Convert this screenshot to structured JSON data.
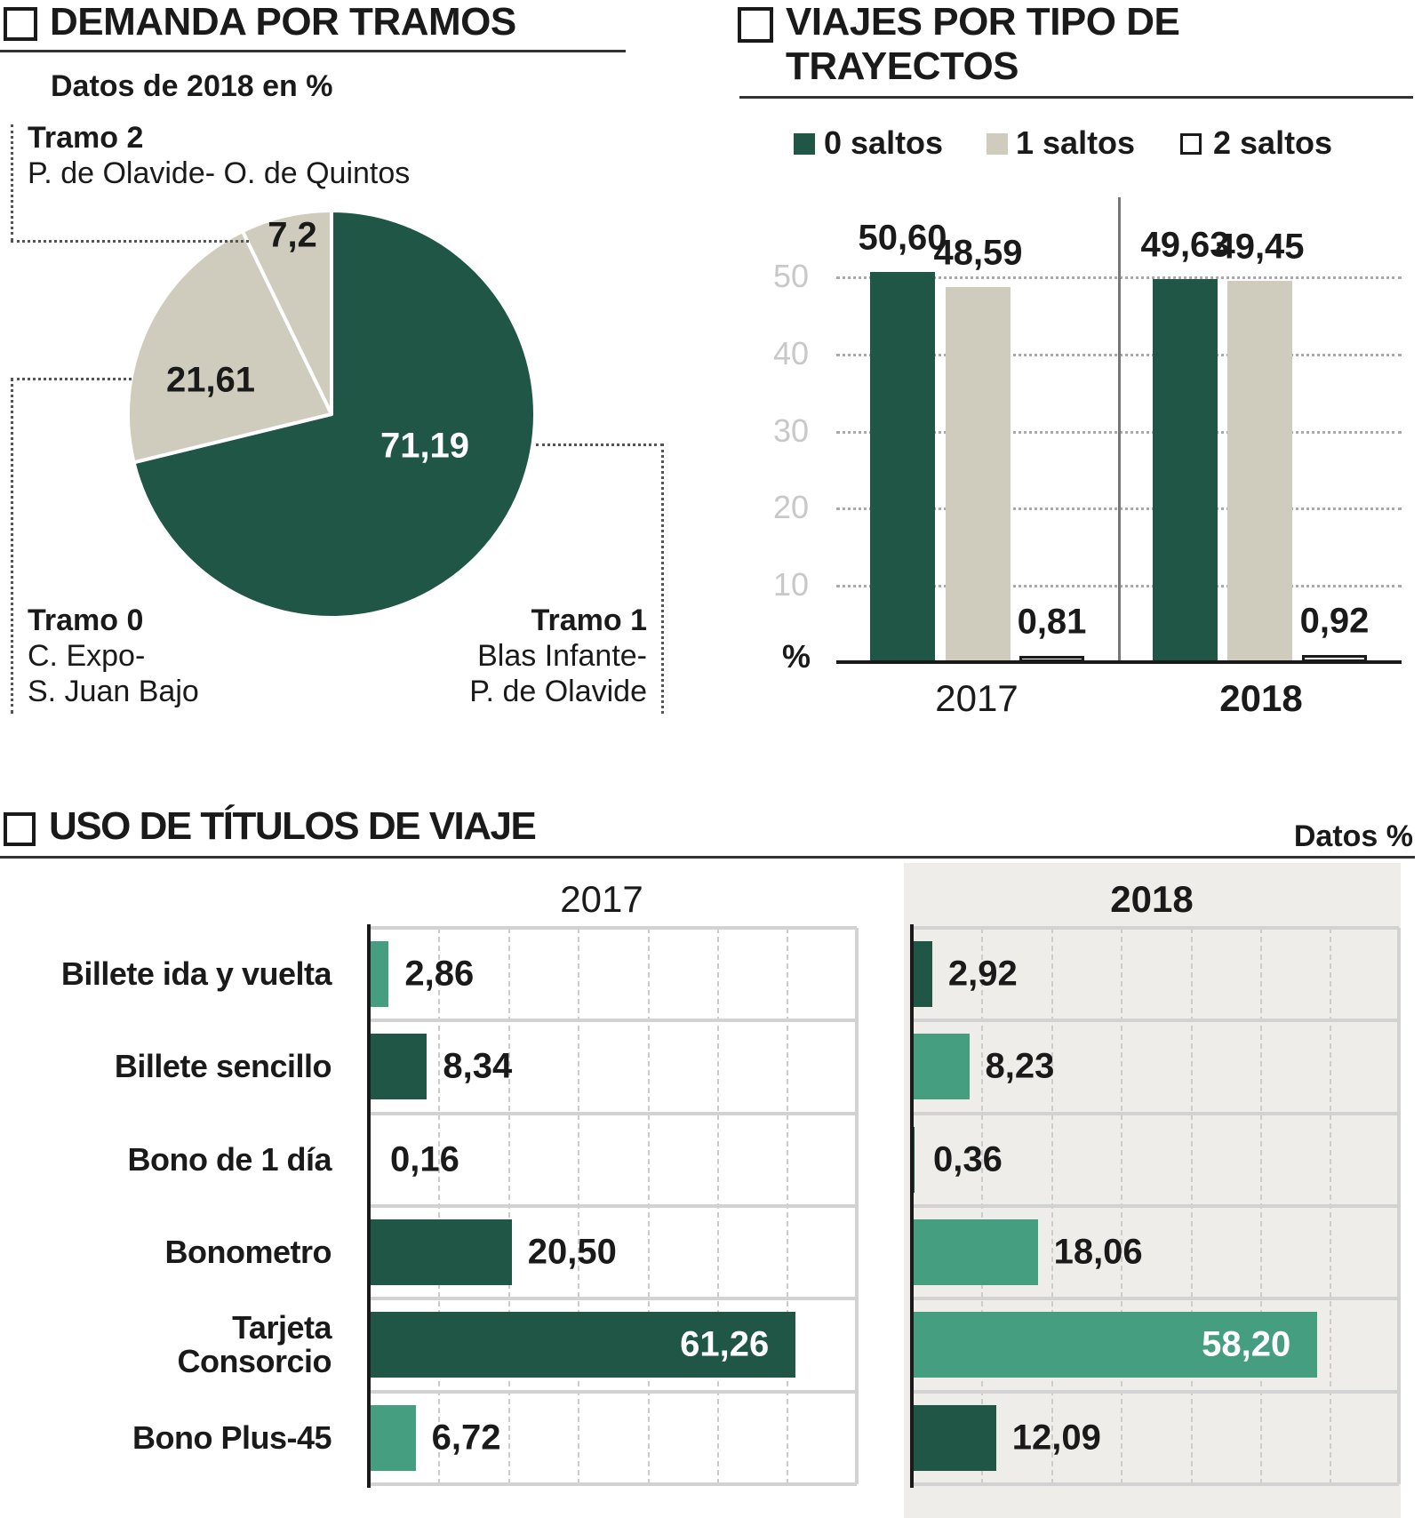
{
  "colors": {
    "dark_green": "#1f5646",
    "light_green": "#459e80",
    "beige": "#d0ccbd",
    "panel_2018": "#efedea"
  },
  "chart_data": [
    {
      "type": "pie",
      "title": "DEMANDA POR TRAMOS",
      "subtitle": "Datos de 2018 en %",
      "slices": [
        {
          "name": "Tramo 1",
          "detail": [
            "Blas Infante-",
            "P. de Olavide"
          ],
          "value": 71.19,
          "label": "71,19",
          "color": "#1f5646"
        },
        {
          "name": "Tramo 0",
          "detail": [
            "C. Expo-",
            "S. Juan Bajo"
          ],
          "value": 21.61,
          "label": "21,61",
          "color": "#d0ccbd"
        },
        {
          "name": "Tramo 2",
          "detail": [
            "P. de Olavide- O. de Quintos"
          ],
          "value": 7.2,
          "label": "7,2",
          "color": "#d0ccbd"
        }
      ]
    },
    {
      "type": "bar",
      "title": "VIAJES POR TIPO DE TRAYECTOS",
      "categories": [
        "2017",
        "2018"
      ],
      "series": [
        {
          "name": "0 saltos",
          "values": [
            50.6,
            49.63
          ],
          "labels": [
            "50,60",
            "49,63"
          ],
          "color": "#1f5646"
        },
        {
          "name": "1 saltos",
          "values": [
            48.59,
            49.45
          ],
          "labels": [
            "48,59",
            "49,45"
          ],
          "color": "#d0ccbd"
        },
        {
          "name": "2 saltos",
          "values": [
            0.81,
            0.92
          ],
          "labels": [
            "0,81",
            "0,92"
          ],
          "color": "#ffffff"
        }
      ],
      "yticks": [
        "10",
        "20",
        "30",
        "40",
        "50"
      ],
      "ylabel": "%",
      "ylim": [
        0,
        55
      ],
      "grid": true,
      "legend": "top"
    },
    {
      "type": "bar",
      "orientation": "horizontal",
      "title": "USO DE TÍTULOS DE VIAJE",
      "note": "Datos %",
      "panels": [
        "2017",
        "2018"
      ],
      "categories": [
        "Billete ida y vuelta",
        "Billete sencillo",
        "Bono de 1 día",
        "Bonometro",
        "Tarjeta Consorcio",
        "Bono Plus-45"
      ],
      "values_2017": [
        2.86,
        8.34,
        0.16,
        20.5,
        61.26,
        6.72
      ],
      "labels_2017": [
        "2,86",
        "8,34",
        "0,16",
        "20,50",
        "61,26",
        "6,72"
      ],
      "colors_2017": [
        "light",
        "dark",
        "light",
        "dark",
        "dark",
        "light"
      ],
      "values_2018": [
        2.92,
        8.23,
        0.36,
        18.06,
        58.2,
        12.09
      ],
      "labels_2018": [
        "2,92",
        "8,23",
        "0,36",
        "18,06",
        "58,20",
        "12,09"
      ],
      "colors_2018": [
        "dark",
        "light",
        "dark",
        "light",
        "light",
        "dark"
      ],
      "xlim": [
        0,
        70
      ],
      "grid": true
    }
  ]
}
